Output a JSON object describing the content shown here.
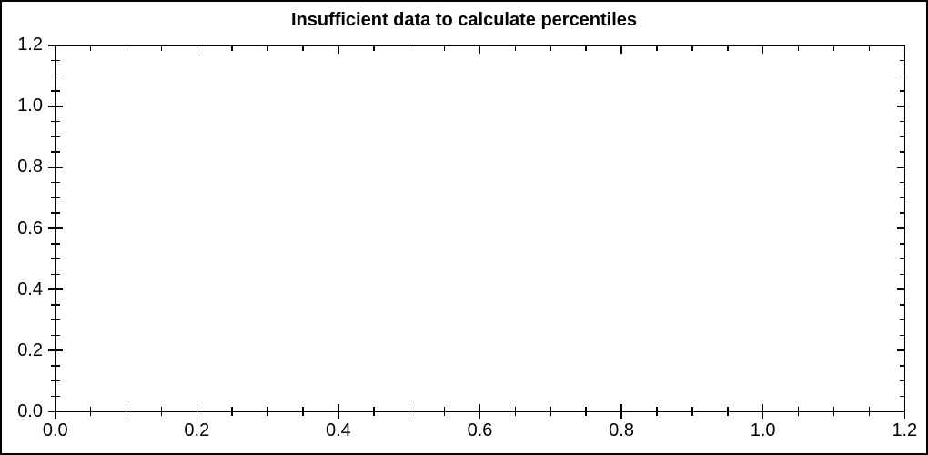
{
  "chart_data": {
    "type": "scatter",
    "title": "Insufficient data to calculate percentiles",
    "series": [],
    "xlabel": "",
    "ylabel": "",
    "xlim": [
      0.0,
      1.2
    ],
    "ylim": [
      0.0,
      1.2
    ],
    "x_tick_labels": [
      "0.0",
      "0.2",
      "0.4",
      "0.6",
      "0.8",
      "1.0",
      "1.2"
    ],
    "y_tick_labels": [
      "0.0",
      "0.2",
      "0.4",
      "0.6",
      "0.8",
      "1.0",
      "1.2"
    ],
    "major_tick_step": 0.2,
    "minor_tick_step": 0.05,
    "tick_style": "crossing on left and bottom, inward on top and right",
    "grid": false,
    "legend_position": "none",
    "plot_area_empty": true
  },
  "style": {
    "background": "#ffffff",
    "axis_color": "#000000",
    "text_color": "#000000",
    "outer_border_color": "#000000"
  }
}
